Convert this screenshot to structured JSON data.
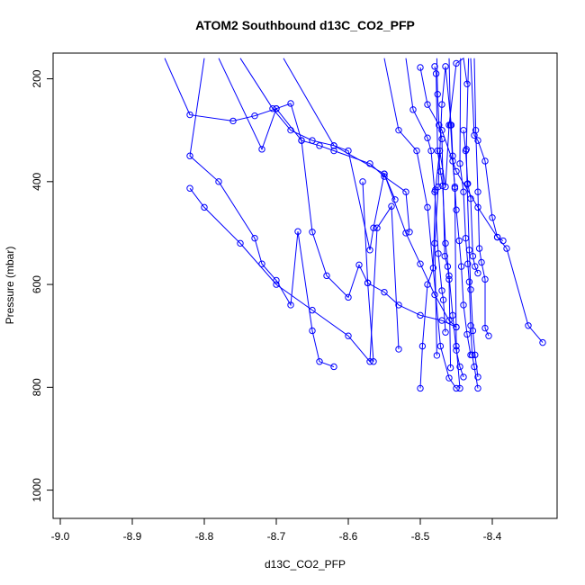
{
  "chart_data": {
    "type": "line",
    "title": "ATOM2 Southbound d13C_CO2_PFP",
    "xlabel": "d13C_CO2_PFP",
    "ylabel": "Pressure (mbar)",
    "xlim": [
      -9.01,
      -8.31
    ],
    "ylim": [
      1055,
      150
    ],
    "y_reversed": true,
    "xticks": [
      -9.0,
      -8.9,
      -8.8,
      -8.7,
      -8.6,
      -8.5,
      -8.4
    ],
    "xtick_labels": [
      "-9.0",
      "-8.9",
      "-8.8",
      "-8.7",
      "-8.6",
      "-8.5",
      "-8.4"
    ],
    "yticks": [
      200,
      400,
      600,
      800,
      1000
    ],
    "ytick_labels": [
      "200",
      "400",
      "600",
      "800",
      "1000"
    ],
    "series_color": "#0000ff",
    "grid": false,
    "legend": "none",
    "series": [
      {
        "x": [
          -8.855,
          -8.82,
          -8.76,
          -8.73,
          -8.7,
          -8.68,
          -8.665,
          -8.64,
          -8.62,
          -8.57,
          -8.55,
          -8.52,
          -8.515
        ],
        "y": [
          160,
          270,
          282,
          272,
          258,
          248,
          320,
          330,
          340,
          365,
          390,
          420,
          498
        ]
      },
      {
        "x": [
          -8.8,
          -8.82,
          -8.78,
          -8.73,
          -8.72,
          -8.7,
          -8.68,
          -8.67,
          -8.65,
          -8.64,
          -8.62
        ],
        "y": [
          160,
          350,
          400,
          510,
          560,
          592,
          640,
          497,
          690,
          750,
          760
        ]
      },
      {
        "x": [
          -8.78,
          -8.72,
          -8.7,
          -8.665,
          -8.65,
          -8.63,
          -8.6,
          -8.585,
          -8.573,
          -8.565
        ],
        "y": [
          160,
          337,
          258,
          320,
          498,
          583,
          625,
          562,
          597,
          750
        ]
      },
      {
        "x": [
          -8.75,
          -8.705,
          -8.68,
          -8.65,
          -8.62,
          -8.6,
          -8.57,
          -8.565,
          -8.55,
          -8.535
        ],
        "y": [
          160,
          258,
          300,
          320,
          330,
          340,
          533,
          490,
          385,
          435
        ]
      },
      {
        "x": [
          -8.82,
          -8.8,
          -8.75,
          -8.7,
          -8.65,
          -8.6,
          -8.57,
          -8.56,
          -8.54,
          -8.53
        ],
        "y": [
          413,
          450,
          520,
          600,
          650,
          700,
          750,
          490,
          448,
          726
        ]
      },
      {
        "x": [
          -8.69,
          -8.62,
          -8.55,
          -8.52,
          -8.5,
          -8.48,
          -8.46,
          -8.45
        ],
        "y": [
          160,
          330,
          385,
          500,
          560,
          620,
          670,
          683
        ]
      },
      {
        "x": [
          -8.58,
          -8.573,
          -8.55,
          -8.53,
          -8.5,
          -8.47,
          -8.45
        ],
        "y": [
          400,
          597,
          615,
          640,
          660,
          670,
          683
        ]
      },
      {
        "x": [
          -8.33,
          -8.35,
          -8.38,
          -8.393,
          -8.42,
          -8.45,
          -8.47,
          -8.49,
          -8.5
        ],
        "y": [
          713,
          680,
          530,
          508,
          450,
          380,
          300,
          250,
          178
        ]
      },
      {
        "x": [
          -8.5,
          -8.497,
          -8.49,
          -8.482,
          -8.479,
          -8.473,
          -8.465,
          -8.46,
          -8.45,
          -8.44,
          -8.435
        ],
        "y": [
          802,
          720,
          600,
          568,
          416,
          340,
          410,
          290,
          170,
          160,
          210
        ]
      },
      {
        "x": [
          -8.477,
          -8.48,
          -8.475,
          -8.47,
          -8.465,
          -8.457,
          -8.455,
          -8.452,
          -8.45,
          -8.445
        ],
        "y": [
          738,
          520,
          410,
          250,
          176,
          290,
          350,
          413,
          720,
          802
        ]
      },
      {
        "x": [
          -8.48,
          -8.478,
          -8.476,
          -8.472,
          -8.469,
          -8.465,
          -8.46,
          -8.455,
          -8.45,
          -8.445,
          -8.44
        ],
        "y": [
          176,
          190,
          340,
          380,
          408,
          520,
          583,
          660,
          728,
          760,
          780
        ]
      },
      {
        "x": [
          -8.444,
          -8.445,
          -8.44,
          -8.437,
          -8.434,
          -8.432,
          -8.43,
          -8.428,
          -8.425,
          -8.42
        ],
        "y": [
          160,
          365,
          420,
          510,
          560,
          595,
          680,
          737,
          760,
          802
        ]
      },
      {
        "x": [
          -8.433,
          -8.436,
          -8.435,
          -8.432,
          -8.43,
          -8.427,
          -8.424,
          -8.42
        ],
        "y": [
          160,
          337,
          405,
          533,
          610,
          690,
          737,
          780
        ]
      },
      {
        "x": [
          -8.43,
          -8.425,
          -8.42,
          -8.41,
          -8.4,
          -8.393,
          -8.385
        ],
        "y": [
          160,
          310,
          320,
          360,
          470,
          508,
          515
        ]
      },
      {
        "x": [
          -8.52,
          -8.51,
          -8.49,
          -8.485,
          -8.48,
          -8.475,
          -8.47,
          -8.468,
          -8.465
        ],
        "y": [
          160,
          260,
          315,
          340,
          420,
          540,
          612,
          630,
          693
        ]
      },
      {
        "x": [
          -8.55,
          -8.53,
          -8.505,
          -8.49,
          -8.472,
          -8.46,
          -8.45
        ],
        "y": [
          160,
          300,
          340,
          450,
          720,
          782,
          802
        ]
      },
      {
        "x": [
          -8.46,
          -8.458,
          -8.455,
          -8.452,
          -8.45,
          -8.446,
          -8.443,
          -8.44,
          -8.435,
          -8.43
        ],
        "y": [
          160,
          290,
          360,
          410,
          455,
          515,
          565,
          640,
          697,
          737
        ]
      },
      {
        "x": [
          -8.425,
          -8.423,
          -8.42,
          -8.418,
          -8.415,
          -8.41,
          -8.41,
          -8.405
        ],
        "y": [
          160,
          300,
          420,
          530,
          557,
          590,
          685,
          700
        ]
      },
      {
        "x": [
          -8.477,
          -8.476,
          -8.474,
          -8.47,
          -8.466,
          -8.462,
          -8.46,
          -8.458
        ],
        "y": [
          160,
          230,
          290,
          317,
          545,
          565,
          590,
          762
        ]
      },
      {
        "x": [
          -8.44,
          -8.437,
          -8.434,
          -8.43,
          -8.427,
          -8.424,
          -8.42
        ],
        "y": [
          300,
          340,
          404,
          433,
          545,
          565,
          578
        ]
      }
    ]
  }
}
